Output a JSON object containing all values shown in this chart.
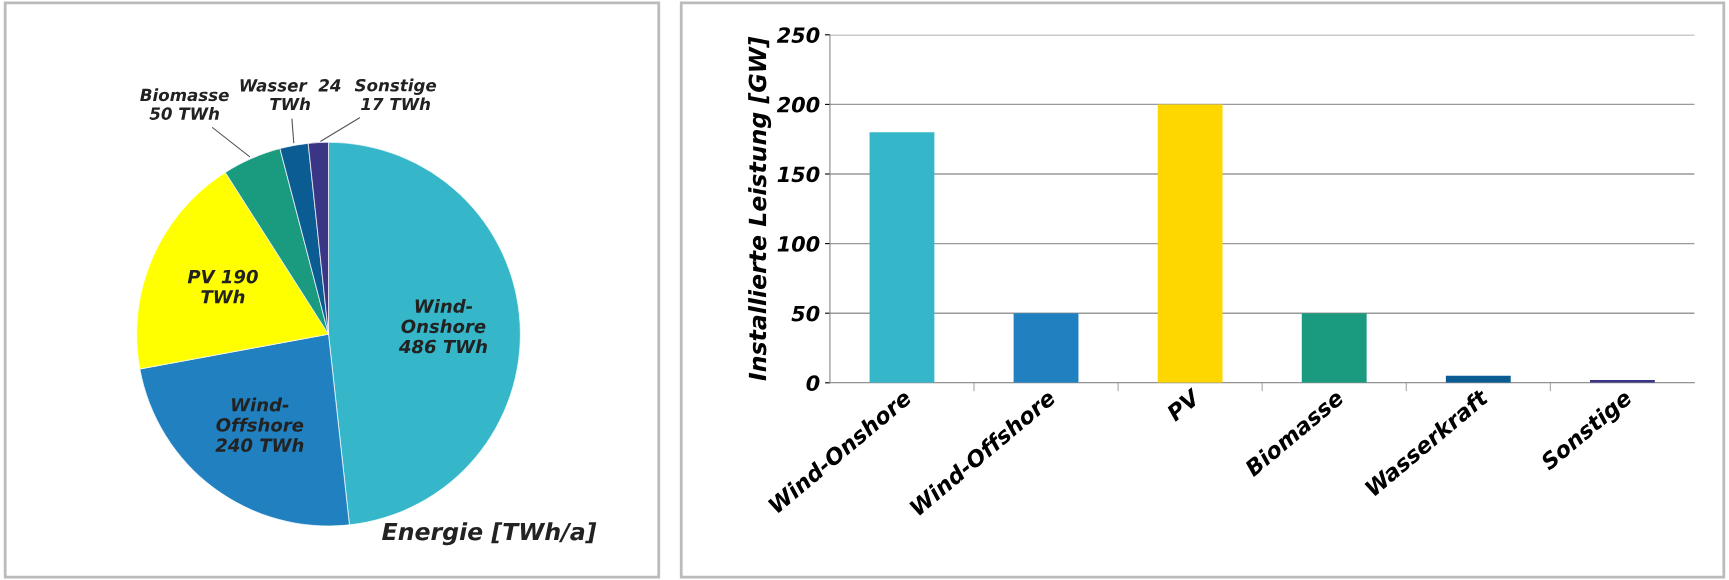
{
  "chart_data": [
    {
      "type": "pie",
      "categories": [
        "Wind-\nOnshore\n486 TWh",
        "Wind-\nOffshore\n240 TWh",
        "PV 190\nTWh",
        "Biomasse\n50 TWh",
        "Wasser  24\nTWh",
        "Sonstige\n17 TWh"
      ],
      "values": [
        486,
        240,
        190,
        50,
        24,
        17
      ],
      "colors": [
        "#35b7c9",
        "#2080c0",
        "#ffff00",
        "#1a9a7e",
        "#0b5c93",
        "#3b3586"
      ],
      "annotations": [
        "Energie [TWh/a]"
      ]
    },
    {
      "type": "bar",
      "categories": [
        "Wind-Onshore",
        "Wind-Offshore",
        "PV",
        "Biomasse",
        "Wasserkraft",
        "Sonstige"
      ],
      "values": [
        180,
        50,
        200,
        50,
        5,
        2
      ],
      "colors": [
        "#35b7c9",
        "#2080c0",
        "#ffd700",
        "#1a9a7e",
        "#0b5c93",
        "#3b3586"
      ],
      "ylabel": "Installierte Leistung [GW]",
      "ylim": [
        0,
        250
      ],
      "yticks": [
        0,
        50,
        100,
        150,
        200,
        250
      ],
      "grid": "y"
    }
  ]
}
